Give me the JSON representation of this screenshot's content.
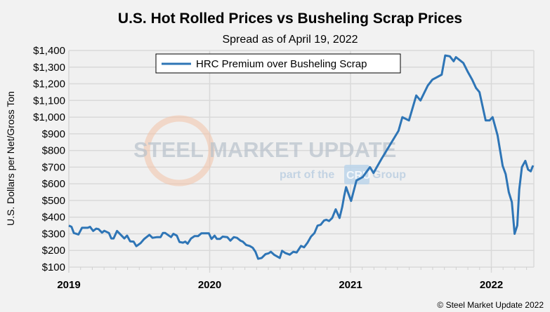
{
  "chart_data": {
    "type": "line",
    "title": "U.S. Hot Rolled Prices vs Busheling Scrap Prices",
    "subtitle": "Spread as of April 19, 2022",
    "ylabel": "U.S. Dollars per Net/Gross Ton",
    "xlabel": "",
    "ylim": [
      100,
      1400
    ],
    "yticks": [
      "$100",
      "$200",
      "$300",
      "$400",
      "$500",
      "$600",
      "$700",
      "$800",
      "$900",
      "$1,000",
      "$1,100",
      "$1,200",
      "$1,300",
      "$1,400"
    ],
    "xticks": [
      "2019",
      "2020",
      "2021",
      "2022"
    ],
    "grid": true,
    "legend_position": "top-center",
    "series": [
      {
        "name": "HRC Premium over Busheling Scrap",
        "color": "#2e75b6",
        "points": [
          [
            "2019-01-01",
            349
          ],
          [
            "2019-01-08",
            342
          ],
          [
            "2019-01-14",
            305
          ],
          [
            "2019-01-26",
            296
          ],
          [
            "2019-02-04",
            336
          ],
          [
            "2019-02-19",
            336
          ],
          [
            "2019-02-25",
            342
          ],
          [
            "2019-03-05",
            317
          ],
          [
            "2019-03-13",
            331
          ],
          [
            "2019-03-19",
            328
          ],
          [
            "2019-03-28",
            307
          ],
          [
            "2019-04-03",
            318
          ],
          [
            "2019-04-15",
            305
          ],
          [
            "2019-04-21",
            272
          ],
          [
            "2019-04-27",
            272
          ],
          [
            "2019-05-06",
            317
          ],
          [
            "2019-05-25",
            272
          ],
          [
            "2019-06-01",
            289
          ],
          [
            "2019-06-09",
            255
          ],
          [
            "2019-06-18",
            253
          ],
          [
            "2019-06-25",
            226
          ],
          [
            "2019-07-06",
            244
          ],
          [
            "2019-07-15",
            268
          ],
          [
            "2019-07-29",
            294
          ],
          [
            "2019-08-06",
            276
          ],
          [
            "2019-08-18",
            280
          ],
          [
            "2019-08-27",
            280
          ],
          [
            "2019-09-02",
            305
          ],
          [
            "2019-09-08",
            305
          ],
          [
            "2019-09-23",
            280
          ],
          [
            "2019-09-29",
            300
          ],
          [
            "2019-10-08",
            289
          ],
          [
            "2019-10-15",
            251
          ],
          [
            "2019-10-24",
            247
          ],
          [
            "2019-10-30",
            253
          ],
          [
            "2019-11-05",
            240
          ],
          [
            "2019-11-14",
            272
          ],
          [
            "2019-11-23",
            286
          ],
          [
            "2019-12-02",
            286
          ],
          [
            "2019-12-11",
            303
          ],
          [
            "2019-12-30",
            303
          ],
          [
            "2020-01-06",
            269
          ],
          [
            "2020-01-14",
            289
          ],
          [
            "2020-01-20",
            269
          ],
          [
            "2020-01-28",
            269
          ],
          [
            "2020-02-04",
            283
          ],
          [
            "2020-02-16",
            280
          ],
          [
            "2020-02-24",
            259
          ],
          [
            "2020-03-04",
            280
          ],
          [
            "2020-03-12",
            276
          ],
          [
            "2020-03-21",
            259
          ],
          [
            "2020-03-27",
            253
          ],
          [
            "2020-04-05",
            233
          ],
          [
            "2020-04-14",
            227
          ],
          [
            "2020-04-22",
            216
          ],
          [
            "2020-04-29",
            192
          ],
          [
            "2020-05-06",
            150
          ],
          [
            "2020-05-15",
            155
          ],
          [
            "2020-05-25",
            178
          ],
          [
            "2020-06-02",
            183
          ],
          [
            "2020-06-08",
            192
          ],
          [
            "2020-06-17",
            173
          ],
          [
            "2020-07-01",
            155
          ],
          [
            "2020-07-07",
            198
          ],
          [
            "2020-07-15",
            185
          ],
          [
            "2020-07-27",
            175
          ],
          [
            "2020-08-05",
            192
          ],
          [
            "2020-08-14",
            188
          ],
          [
            "2020-08-25",
            227
          ],
          [
            "2020-09-02",
            219
          ],
          [
            "2020-09-11",
            247
          ],
          [
            "2020-09-20",
            283
          ],
          [
            "2020-09-29",
            305
          ],
          [
            "2020-10-07",
            349
          ],
          [
            "2020-10-15",
            354
          ],
          [
            "2020-10-24",
            380
          ],
          [
            "2020-10-30",
            384
          ],
          [
            "2020-11-06",
            377
          ],
          [
            "2020-11-14",
            395
          ],
          [
            "2020-11-23",
            447
          ],
          [
            "2020-12-03",
            395
          ],
          [
            "2020-12-10",
            461
          ],
          [
            "2020-12-15",
            525
          ],
          [
            "2020-12-20",
            580
          ],
          [
            "2021-01-02",
            497
          ],
          [
            "2021-01-16",
            620
          ],
          [
            "2021-02-01",
            640
          ],
          [
            "2021-02-20",
            700
          ],
          [
            "2021-03-01",
            665
          ],
          [
            "2021-03-22",
            750
          ],
          [
            "2021-05-05",
            918
          ],
          [
            "2021-05-15",
            1000
          ],
          [
            "2021-06-01",
            980
          ],
          [
            "2021-06-20",
            1130
          ],
          [
            "2021-07-01",
            1100
          ],
          [
            "2021-07-20",
            1190
          ],
          [
            "2021-08-01",
            1225
          ],
          [
            "2021-08-25",
            1255
          ],
          [
            "2021-09-03",
            1370
          ],
          [
            "2021-09-15",
            1365
          ],
          [
            "2021-09-25",
            1335
          ],
          [
            "2021-10-01",
            1360
          ],
          [
            "2021-10-20",
            1325
          ],
          [
            "2021-11-01",
            1270
          ],
          [
            "2021-11-12",
            1225
          ],
          [
            "2021-11-22",
            1175
          ],
          [
            "2021-12-01",
            1150
          ],
          [
            "2021-12-17",
            980
          ],
          [
            "2021-12-27",
            980
          ],
          [
            "2022-01-04",
            1000
          ],
          [
            "2022-01-17",
            890
          ],
          [
            "2022-01-30",
            708
          ],
          [
            "2022-02-07",
            658
          ],
          [
            "2022-02-15",
            550
          ],
          [
            "2022-02-23",
            490
          ],
          [
            "2022-03-02",
            300
          ],
          [
            "2022-03-09",
            350
          ],
          [
            "2022-03-14",
            565
          ],
          [
            "2022-03-21",
            700
          ],
          [
            "2022-03-30",
            738
          ],
          [
            "2022-04-06",
            685
          ],
          [
            "2022-04-13",
            675
          ],
          [
            "2022-04-19",
            710
          ]
        ]
      }
    ]
  },
  "watermark": {
    "brand": "STEEL MARKET UPDATE",
    "tagline_pre": "part of the",
    "tagline_logo": "CRU",
    "tagline_post": "Group"
  },
  "copyright": "© Steel Market Update 2022"
}
